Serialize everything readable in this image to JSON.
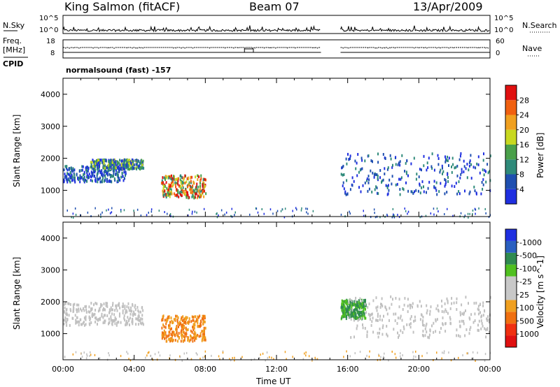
{
  "header": {
    "station": "King Salmon (fitACF)",
    "beam": "Beam 07",
    "date": "13/Apr/2009"
  },
  "top_panels": {
    "nsky_label": "N.Sky",
    "nsky_ticks": [
      "10^5",
      "10^0"
    ],
    "nsearch_label": "N.Search",
    "nsearch_ticks": [
      "10^5",
      "10^0"
    ],
    "freq_label": "Freq.",
    "freq_unit": "[MHz]",
    "freq_ticks": [
      "18",
      "8"
    ],
    "nave_label": "Nave",
    "nave_ticks": [
      "60",
      "0"
    ],
    "cpid_label": "CPID",
    "cpid_value": "normalsound (fast) -157"
  },
  "colors": {
    "power_scale": [
      "#1f2fe0",
      "#1f4fb0",
      "#2f8a7a",
      "#4aa04a",
      "#c8d820",
      "#f0a020",
      "#f06010",
      "#e01010"
    ],
    "velocity_scale": [
      "#1f2fe0",
      "#2a5fc0",
      "#2f8a50",
      "#50c020",
      "#c8c8c8",
      "#c8c8c8",
      "#f0a020",
      "#f07010",
      "#f03010",
      "#e01010"
    ],
    "ground_scatter": "#c0c0c0"
  },
  "chart_data": [
    {
      "type": "heatmap",
      "title": "",
      "xlabel": "Time UT",
      "ylabel": "Slant Range [km]",
      "x_ticks": [
        "00:00",
        "04:00",
        "08:00",
        "12:00",
        "16:00",
        "20:00",
        "00:00"
      ],
      "x_range_hours": [
        0,
        24
      ],
      "y_ticks": [
        "1000",
        "2000",
        "3000",
        "4000"
      ],
      "y_range_km": [
        180,
        4500
      ],
      "data_gap_hours": [
        14.5,
        15.6
      ],
      "colorbar": {
        "label": "Power [dB]",
        "ticks": [
          "4",
          "8",
          "12",
          "16",
          "20",
          "24",
          "28"
        ],
        "range": [
          0,
          30
        ]
      },
      "regions": [
        {
          "t_start": 0.0,
          "t_end": 3.5,
          "range_start": 1300,
          "range_end": 1800,
          "level": "low"
        },
        {
          "t_start": 1.5,
          "t_end": 4.5,
          "range_start": 1700,
          "range_end": 2000,
          "level": "medium"
        },
        {
          "t_start": 5.5,
          "t_end": 8.0,
          "range_start": 800,
          "range_end": 1500,
          "level": "high"
        },
        {
          "t_start": 15.6,
          "t_end": 24.0,
          "range_start": 900,
          "range_end": 2200,
          "level": "low-medium"
        }
      ]
    },
    {
      "type": "heatmap",
      "title": "",
      "xlabel": "Time UT",
      "ylabel": "Slant Range [km]",
      "x_ticks": [
        "00:00",
        "04:00",
        "08:00",
        "12:00",
        "16:00",
        "20:00",
        "00:00"
      ],
      "x_range_hours": [
        0,
        24
      ],
      "y_ticks": [
        "1000",
        "2000",
        "3000",
        "4000"
      ],
      "y_range_km": [
        180,
        4500
      ],
      "data_gap_hours": [
        14.5,
        15.6
      ],
      "colorbar": {
        "label": "Velocity [m s^-1]",
        "ticks": [
          "1000",
          "500",
          "100",
          "25",
          "-25",
          "-100",
          "-500",
          "-1000"
        ],
        "range": [
          -1000,
          1000
        ]
      },
      "regions": [
        {
          "t_start": 0.0,
          "t_end": 4.5,
          "range_start": 1300,
          "range_end": 2000,
          "velocity": "ground scatter"
        },
        {
          "t_start": 5.5,
          "t_end": 8.0,
          "range_start": 800,
          "range_end": 1600,
          "velocity": "-100 to -500"
        },
        {
          "t_start": 15.6,
          "t_end": 17.0,
          "range_start": 1500,
          "range_end": 2100,
          "velocity": "100 to 500"
        },
        {
          "t_start": 16.0,
          "t_end": 24.0,
          "range_start": 900,
          "range_end": 2200,
          "velocity": "ground scatter"
        }
      ]
    }
  ]
}
